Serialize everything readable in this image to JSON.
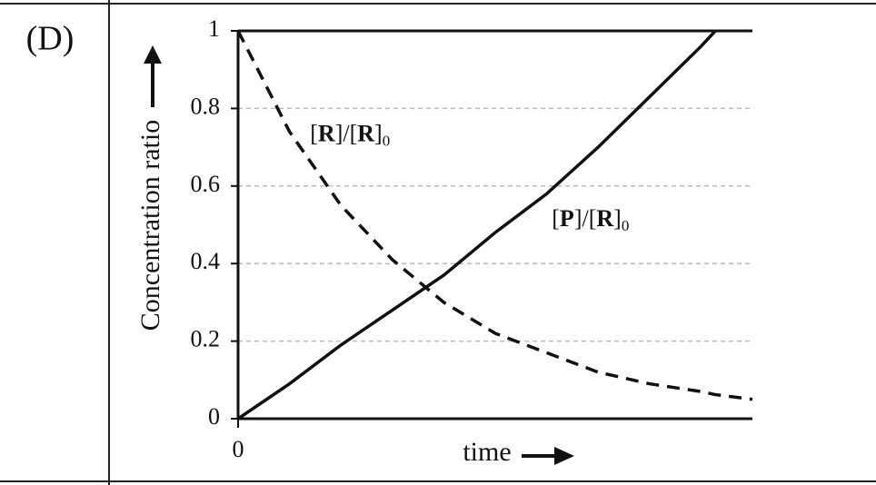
{
  "chart_data": {
    "type": "line",
    "panel_label": "(D)",
    "y_label": "Concentration ratio",
    "x_label": "time",
    "x": [
      0,
      0.1,
      0.2,
      0.3,
      0.4,
      0.5,
      0.6,
      0.7,
      0.8,
      0.9,
      0.928,
      1
    ],
    "series": [
      {
        "color": "#111111",
        "dash": true,
        "values": [
          1,
          0.74,
          0.55,
          0.41,
          0.3,
          0.22,
          0.17,
          0.12,
          0.09,
          0.07,
          0.062,
          0.05
        ]
      },
      {
        "color": "#111111",
        "dash": false,
        "values": [
          0,
          0.09,
          0.19,
          0.28,
          0.37,
          0.48,
          0.58,
          0.7,
          0.83,
          0.96,
          1,
          null
        ]
      }
    ],
    "annotations": [
      {
        "parts": [
          "[",
          "R",
          "]/[",
          "R",
          "]",
          "0"
        ],
        "x": 0.14,
        "y": 0.73
      },
      {
        "parts": [
          "[",
          "P",
          "]/[",
          "R",
          "]",
          "0"
        ],
        "x": 0.61,
        "y": 0.51
      }
    ],
    "xlim": [
      0,
      1
    ],
    "xticks": [
      0
    ],
    "ylim": [
      0,
      1
    ],
    "yticks": [
      0,
      0.2,
      0.4,
      0.6,
      0.8,
      1
    ],
    "grid": true
  }
}
